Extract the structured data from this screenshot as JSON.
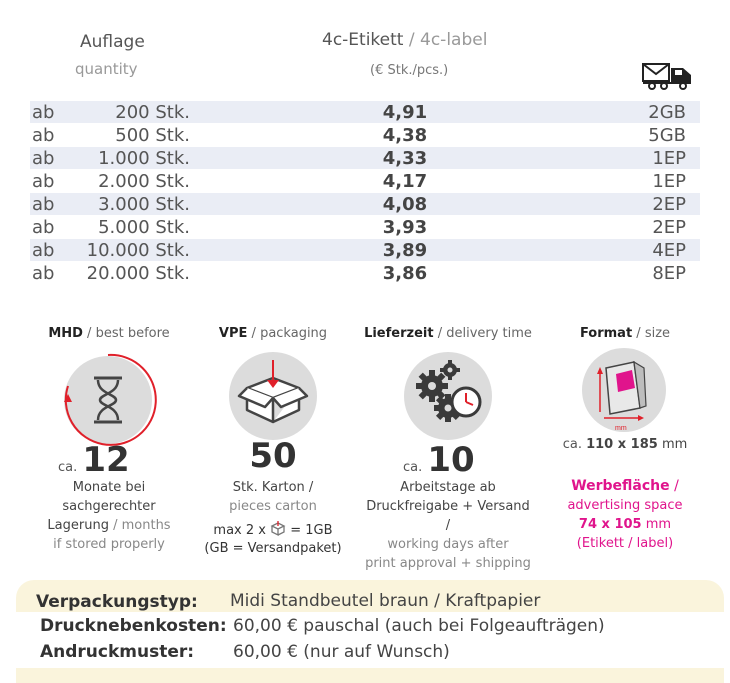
{
  "header": {
    "qty_title": "Auflage",
    "qty_sub": "quantity",
    "price_title_main": "4c-Etikett",
    "price_title_sep": " / ",
    "price_title_en": "4c-label",
    "price_sub": "(€ Stk./pcs.)",
    "shipping_icon": "delivery-truck-icon"
  },
  "rows": [
    {
      "prefix": "ab",
      "qty": "200 Stk.",
      "price": "4,91",
      "ship": "2GB"
    },
    {
      "prefix": "ab",
      "qty": "500 Stk.",
      "price": "4,38",
      "ship": "5GB"
    },
    {
      "prefix": "ab",
      "qty": "1.000 Stk.",
      "price": "4,33",
      "ship": "1EP"
    },
    {
      "prefix": "ab",
      "qty": "2.000 Stk.",
      "price": "4,17",
      "ship": "1EP"
    },
    {
      "prefix": "ab",
      "qty": "3.000 Stk.",
      "price": "4,08",
      "ship": "2EP"
    },
    {
      "prefix": "ab",
      "qty": "5.000 Stk.",
      "price": "3,93",
      "ship": "2EP"
    },
    {
      "prefix": "ab",
      "qty": "10.000 Stk.",
      "price": "3,89",
      "ship": "4EP"
    },
    {
      "prefix": "ab",
      "qty": "20.000 Stk.",
      "price": "3,86",
      "ship": "8EP"
    }
  ],
  "features": {
    "mhd": {
      "title_de": "MHD",
      "title_en": "best before",
      "ca": "ca.",
      "value": "12",
      "line1": "Monate bei",
      "line2": "sachgerechter",
      "line3_de": "Lagerung",
      "line3_en": "months",
      "line4": "if stored properly"
    },
    "vpe": {
      "title_de": "VPE",
      "title_en": "packaging",
      "value": "50",
      "line1": "Stk. Karton /",
      "line2": "pieces carton",
      "line3a": "max 2 x",
      "line3b": "= 1GB",
      "line4": "(GB = Versandpaket)"
    },
    "lieferzeit": {
      "title_de": "Lieferzeit",
      "title_en": "delivery time",
      "ca": "ca.",
      "value": "10",
      "line1": "Arbeitstage ab",
      "line2": "Druckfreigabe + Versand /",
      "line3": "working days after",
      "line4": "print approval + shipping"
    },
    "format": {
      "title_de": "Format",
      "title_en": "size",
      "ca": "ca.",
      "size": "110 x 185",
      "unit": "mm",
      "icon_mm": "mm",
      "ad_de": "Werbefläche",
      "ad_sep": " /",
      "ad_en": "advertising space",
      "ad_size": "74 x 105",
      "ad_unit": "mm",
      "ad_note": "(Etikett / label)"
    }
  },
  "bottom": {
    "packtype_label": "Verpackungstyp:",
    "packtype_value": "Midi Standbeutel braun / Kraftpapier",
    "extra_label": "Drucknebenkosten:",
    "extra_value": "60,00 € pauschal (auch bei Folgeaufträgen)",
    "proof_label": "Andruckmuster:",
    "proof_value": "60,00 € (nur auf Wunsch)"
  },
  "colors": {
    "accent_pink": "#e0148c",
    "accent_red": "#e0202a",
    "row_shade": "#eaedf5",
    "bottom_bg": "#faf4dc"
  }
}
